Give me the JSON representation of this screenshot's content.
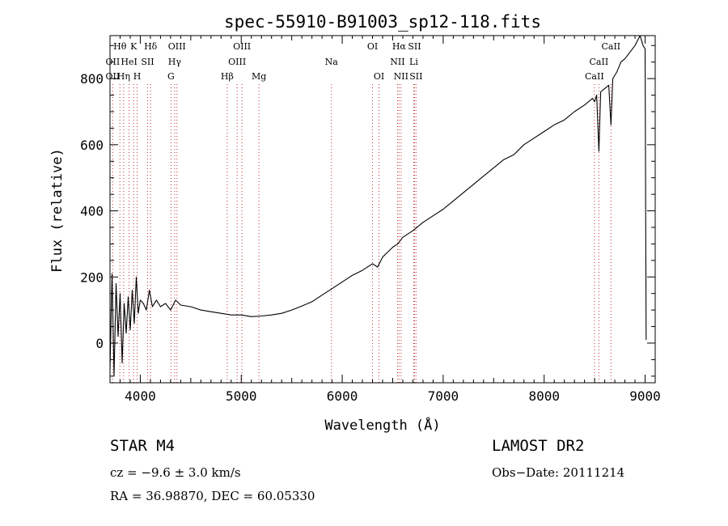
{
  "chart_data": {
    "type": "line",
    "title": "spec-55910-B91003_sp12-118.fits",
    "xlabel": "Wavelength (Å)",
    "ylabel": "Flux (relative)",
    "xlim": [
      3700,
      9100
    ],
    "ylim": [
      -120,
      930
    ],
    "x_ticks": [
      4000,
      5000,
      6000,
      7000,
      8000,
      9000
    ],
    "y_ticks": [
      0,
      200,
      400,
      600,
      800
    ],
    "grid": false,
    "series": [
      {
        "x": [
          3700,
          3720,
          3740,
          3760,
          3780,
          3800,
          3820,
          3840,
          3860,
          3880,
          3900,
          3920,
          3940,
          3960,
          3980,
          4000,
          4030,
          4060,
          4090,
          4120,
          4160,
          4200,
          4250,
          4300,
          4350,
          4400,
          4500,
          4600,
          4700,
          4800,
          4900,
          5000,
          5100,
          5200,
          5300,
          5400,
          5500,
          5600,
          5700,
          5800,
          5900,
          6000,
          6100,
          6200,
          6300,
          6350,
          6400,
          6450,
          6500,
          6550,
          6600,
          6700,
          6800,
          6900,
          7000,
          7100,
          7200,
          7300,
          7400,
          7500,
          7600,
          7700,
          7800,
          7900,
          8000,
          8100,
          8200,
          8300,
          8400,
          8480,
          8500,
          8520,
          8542,
          8560,
          8600,
          8640,
          8662,
          8680,
          8720,
          8760,
          8800,
          8850,
          8900,
          8950,
          8980,
          9000,
          9010
        ],
        "y": [
          -80,
          210,
          -100,
          180,
          20,
          150,
          -60,
          120,
          30,
          140,
          40,
          160,
          60,
          200,
          90,
          130,
          120,
          100,
          160,
          110,
          130,
          110,
          120,
          100,
          130,
          115,
          110,
          100,
          95,
          90,
          85,
          85,
          80,
          82,
          85,
          90,
          100,
          112,
          125,
          145,
          165,
          185,
          205,
          220,
          240,
          230,
          260,
          275,
          290,
          300,
          320,
          340,
          365,
          385,
          405,
          430,
          455,
          480,
          505,
          530,
          555,
          570,
          600,
          620,
          640,
          660,
          675,
          700,
          720,
          740,
          730,
          750,
          580,
          760,
          770,
          780,
          660,
          800,
          820,
          850,
          860,
          880,
          900,
          930,
          900,
          890,
          10
        ]
      }
    ],
    "line_labels": [
      {
        "text": "Hθ",
        "x": 3798,
        "row": 0
      },
      {
        "text": "OII",
        "x": 3727,
        "row": 1
      },
      {
        "text": "OII",
        "x": 3727,
        "row": 2
      },
      {
        "text": "K",
        "x": 3934,
        "row": 0
      },
      {
        "text": "HeI",
        "x": 3889,
        "row": 1
      },
      {
        "text": "Hη",
        "x": 3835,
        "row": 2
      },
      {
        "text": "Hδ",
        "x": 4102,
        "row": 0
      },
      {
        "text": "SII",
        "x": 4072,
        "row": 1
      },
      {
        "text": "H",
        "x": 3969,
        "row": 2
      },
      {
        "text": "OIII",
        "x": 4363,
        "row": 0
      },
      {
        "text": "Hγ",
        "x": 4340,
        "row": 1
      },
      {
        "text": "G",
        "x": 4304,
        "row": 2
      },
      {
        "text": "OIII",
        "x": 5007,
        "row": 0
      },
      {
        "text": "OIII",
        "x": 4959,
        "row": 1
      },
      {
        "text": "Hβ",
        "x": 4861,
        "row": 2
      },
      {
        "text": "Mg",
        "x": 5175,
        "row": 2
      },
      {
        "text": "Na",
        "x": 5893,
        "row": 1
      },
      {
        "text": "OI",
        "x": 6300,
        "row": 0
      },
      {
        "text": "OI",
        "x": 6364,
        "row": 2
      },
      {
        "text": "Hα",
        "x": 6563,
        "row": 0
      },
      {
        "text": "SII",
        "x": 6716,
        "row": 0
      },
      {
        "text": "NII",
        "x": 6548,
        "row": 1
      },
      {
        "text": "Li",
        "x": 6708,
        "row": 1
      },
      {
        "text": "NII",
        "x": 6583,
        "row": 2
      },
      {
        "text": "SII",
        "x": 6731,
        "row": 2
      },
      {
        "text": "CaII",
        "x": 8662,
        "row": 0
      },
      {
        "text": "CaII",
        "x": 8542,
        "row": 1
      },
      {
        "text": "CaII",
        "x": 8498,
        "row": 2
      }
    ],
    "line_markers": [
      3727,
      3798,
      3835,
      3889,
      3934,
      3969,
      4072,
      4102,
      4304,
      4340,
      4363,
      4861,
      4959,
      5007,
      5175,
      5893,
      6300,
      6364,
      6548,
      6563,
      6583,
      6708,
      6716,
      6731,
      8498,
      8542,
      8662
    ]
  },
  "info": {
    "object": "STAR    M4",
    "survey": "LAMOST  DR2",
    "cz": "cz = −9.6 ± 3.0 km/s",
    "obs_date": "Obs−Date: 20111214",
    "radec": "RA =  36.98870, DEC =  60.05330"
  }
}
